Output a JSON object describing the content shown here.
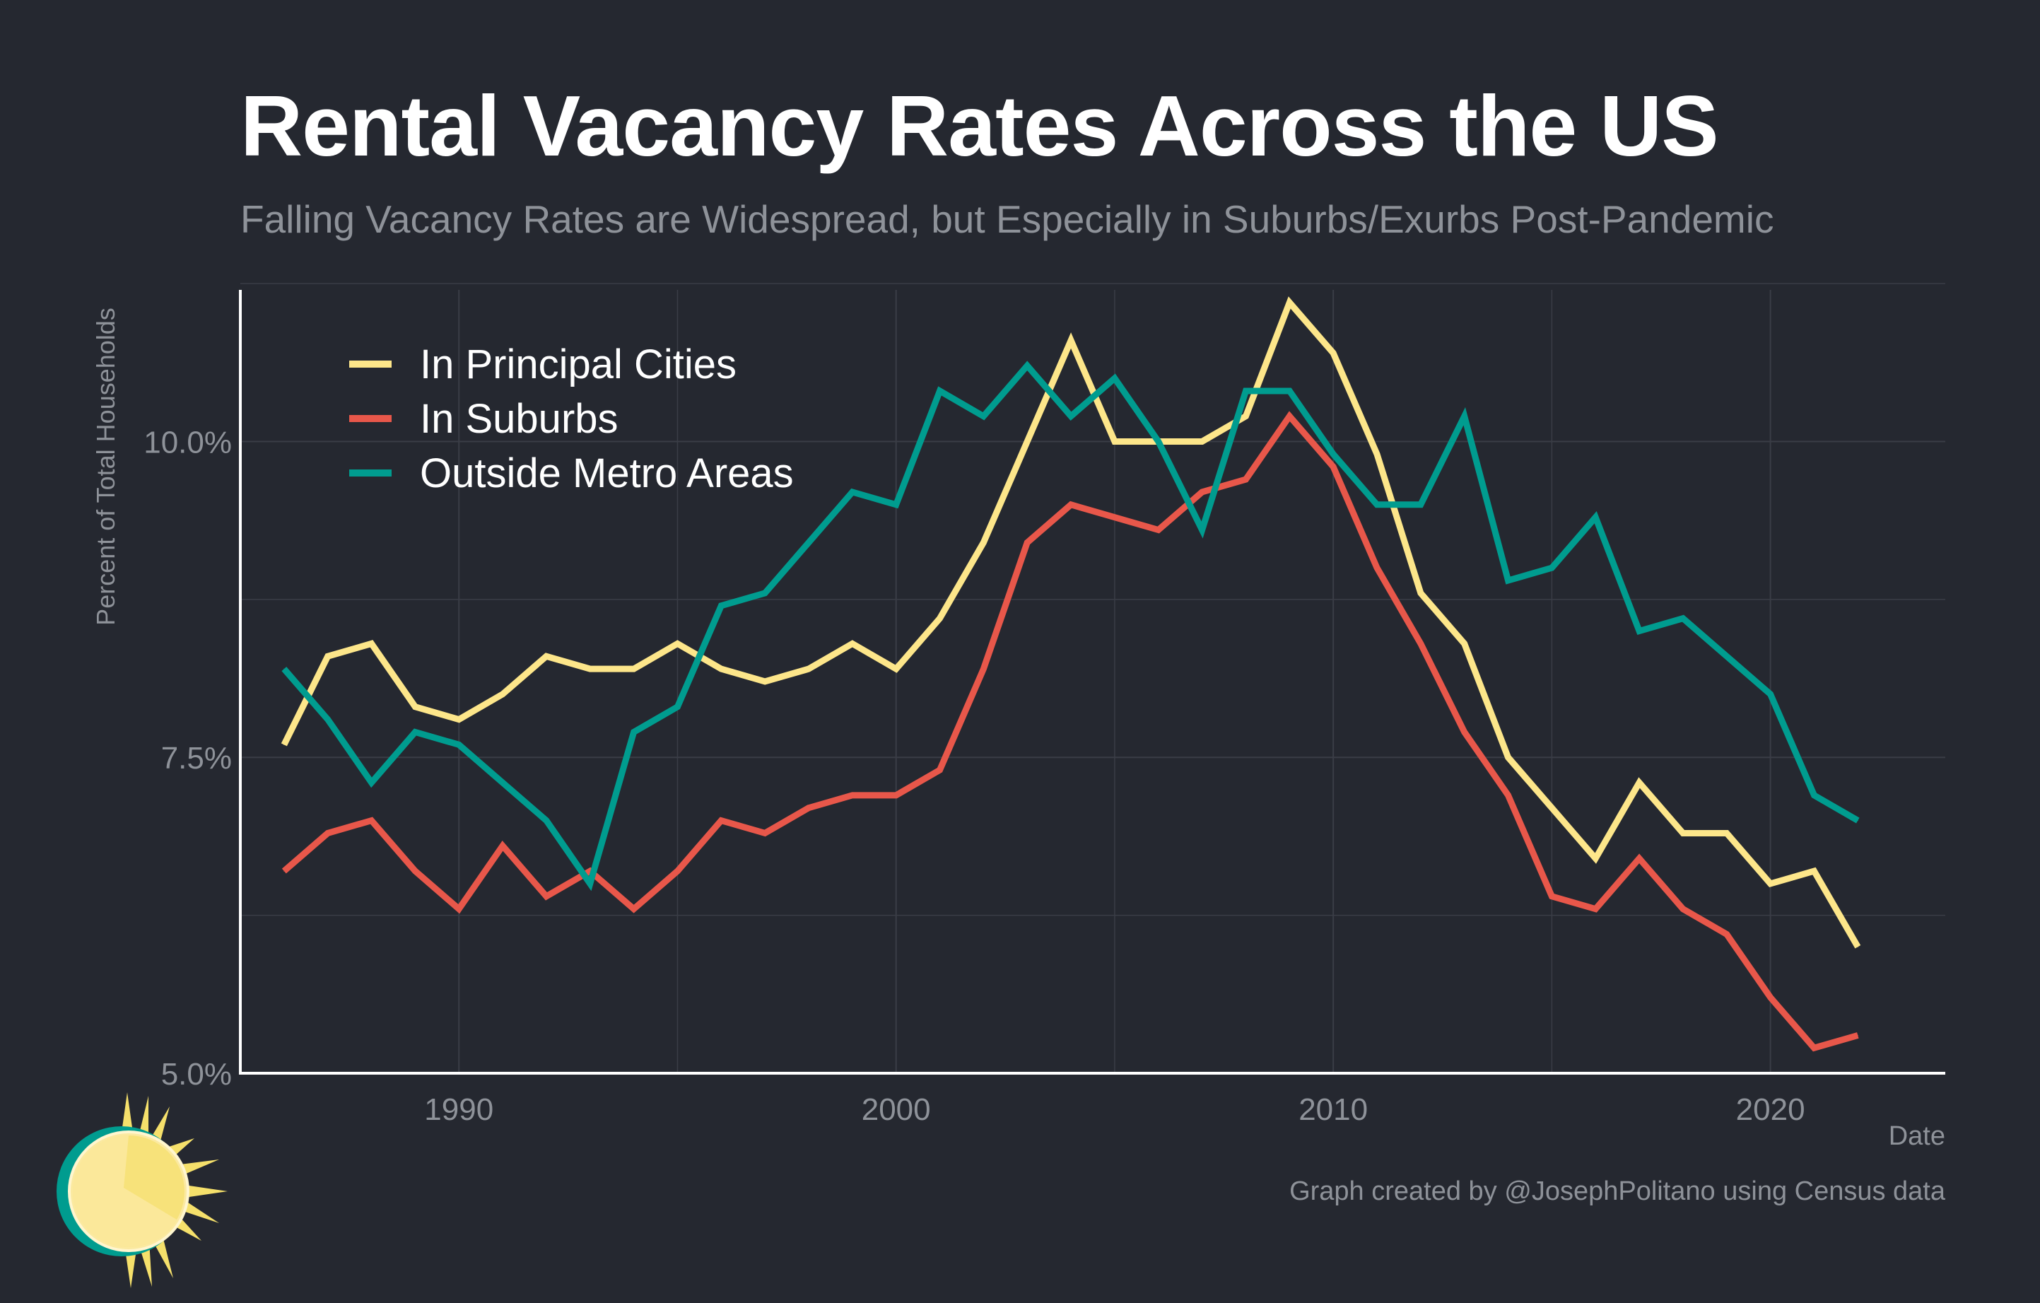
{
  "chart_data": {
    "type": "line",
    "title": "Rental Vacancy Rates Across the US",
    "subtitle": "Falling Vacancy Rates are Widespread, but Especially in Suburbs/Exurbs Post-Pandemic",
    "xlabel": "Date",
    "ylabel": "Percent of Total Households",
    "caption": "Graph created by @JosephPolitano using Census data",
    "xlim": [
      1985,
      2024
    ],
    "ylim": [
      5.0,
      11.2
    ],
    "x_ticks": [
      1990,
      2000,
      2010,
      2020
    ],
    "x_tick_labels": [
      "1990",
      "2000",
      "2010",
      "2020"
    ],
    "y_ticks": [
      5.0,
      7.5,
      10.0
    ],
    "y_tick_labels": [
      "5.0%",
      "7.5%",
      "10.0%"
    ],
    "grid": true,
    "legend_position": "top-left",
    "x": [
      1986,
      1987,
      1988,
      1989,
      1990,
      1991,
      1992,
      1993,
      1994,
      1995,
      1996,
      1997,
      1998,
      1999,
      2000,
      2001,
      2002,
      2003,
      2004,
      2005,
      2006,
      2007,
      2008,
      2009,
      2010,
      2011,
      2012,
      2013,
      2014,
      2015,
      2016,
      2017,
      2018,
      2019,
      2020,
      2021,
      2022
    ],
    "series": [
      {
        "name": "In Principal Cities",
        "color": "#fde68a",
        "values": [
          7.6,
          8.3,
          8.4,
          7.9,
          7.8,
          8.0,
          8.3,
          8.2,
          8.2,
          8.4,
          8.2,
          8.1,
          8.2,
          8.4,
          8.2,
          8.6,
          9.2,
          10.0,
          10.8,
          10.0,
          10.0,
          10.0,
          10.2,
          11.1,
          10.7,
          9.9,
          8.8,
          8.4,
          7.5,
          7.1,
          6.7,
          7.3,
          6.9,
          6.9,
          6.5,
          6.6,
          6.0
        ]
      },
      {
        "name": "In Suburbs",
        "color": "#e8574a",
        "values": [
          6.6,
          6.9,
          7.0,
          6.6,
          6.3,
          6.8,
          6.4,
          6.6,
          6.3,
          6.6,
          7.0,
          6.9,
          7.1,
          7.2,
          7.2,
          7.4,
          8.2,
          9.2,
          9.5,
          9.4,
          9.3,
          9.6,
          9.7,
          10.2,
          9.8,
          9.0,
          8.4,
          7.7,
          7.2,
          6.4,
          6.3,
          6.7,
          6.3,
          6.1,
          5.6,
          5.2,
          5.3
        ]
      },
      {
        "name": "Outside Metro Areas",
        "color": "#009c8f",
        "values": [
          8.2,
          7.8,
          7.3,
          7.7,
          7.6,
          7.3,
          7.0,
          6.5,
          7.7,
          7.9,
          8.7,
          8.8,
          9.2,
          9.6,
          9.5,
          10.4,
          10.2,
          10.6,
          10.2,
          10.5,
          10.0,
          9.3,
          10.4,
          10.4,
          9.9,
          9.5,
          9.5,
          10.2,
          8.9,
          9.0,
          9.4,
          8.5,
          8.6,
          8.3,
          8.0,
          7.2,
          7.0
        ]
      }
    ]
  },
  "colors": {
    "background": "#252830",
    "grid": "#3a3d46",
    "axis": "#ffffff",
    "tick_text": "#8e9299",
    "legend_text": "#ffffff"
  },
  "logo": {
    "icon": "sun-icon"
  }
}
